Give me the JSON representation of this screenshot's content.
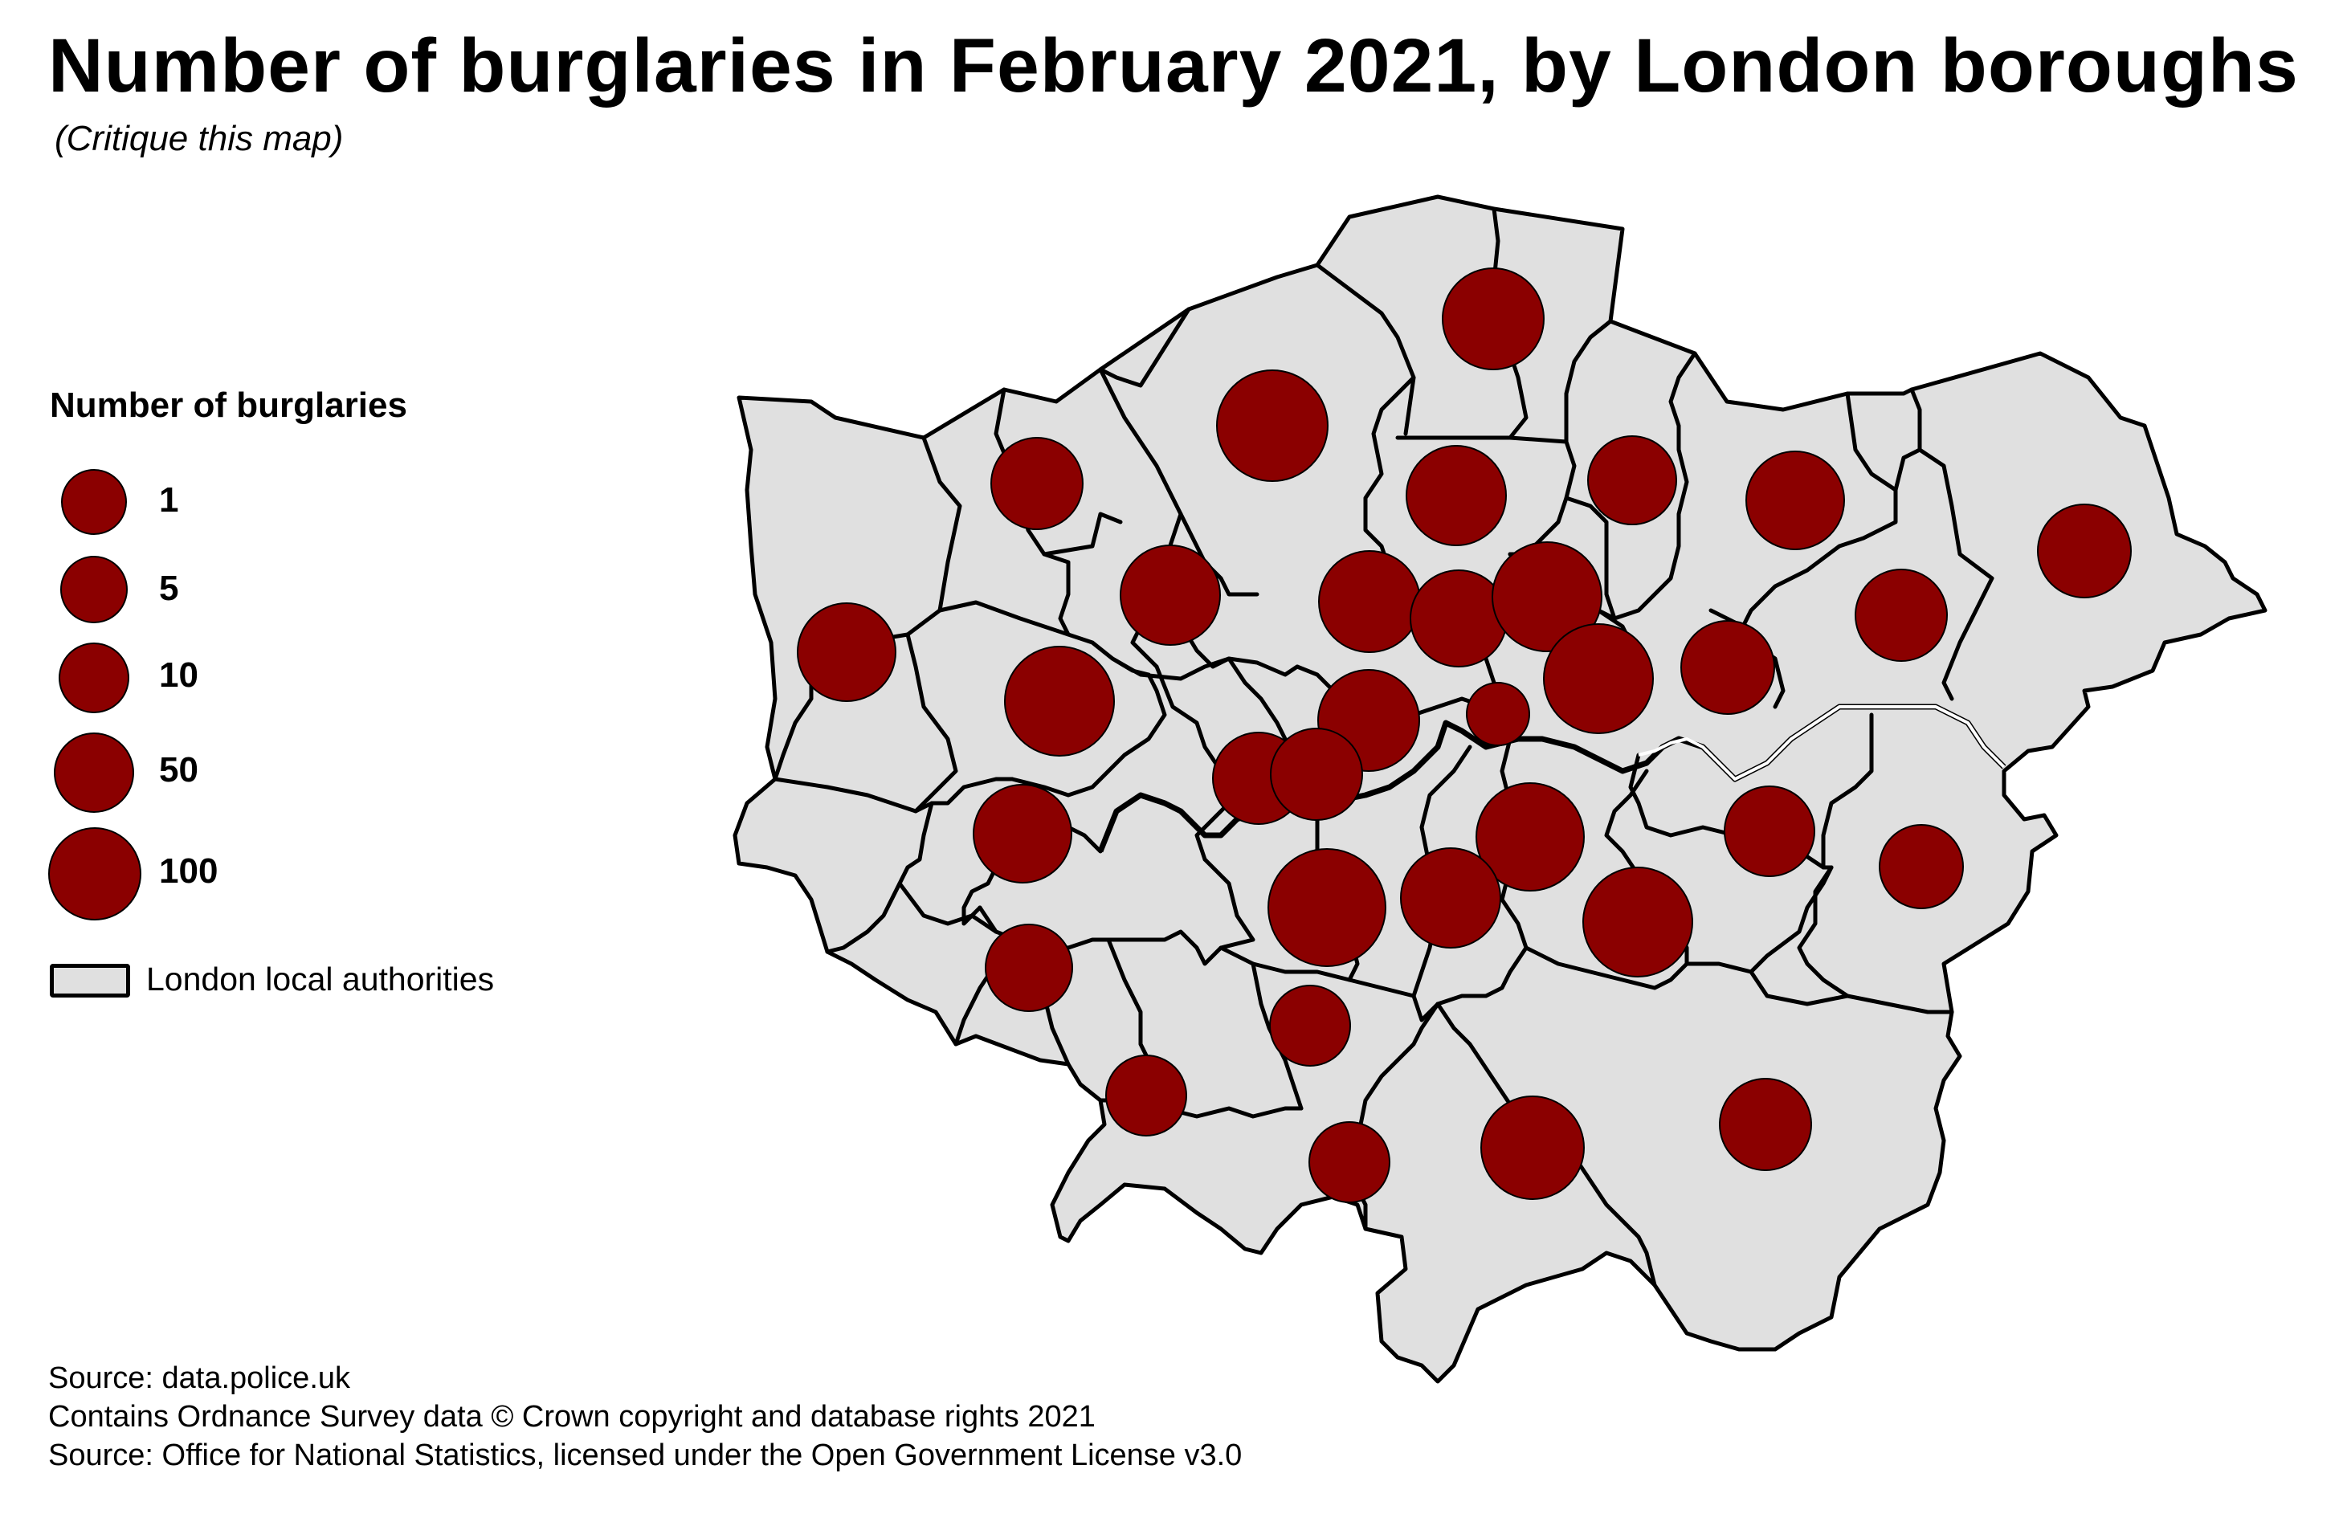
{
  "title": "Number of burglaries in February 2021, by London boroughs",
  "subtitle": "(Critique this map)",
  "colors": {
    "symbol_fill": "#8b0000",
    "area_fill": "#e0e0e0",
    "outline": "#000000",
    "background": "#ffffff"
  },
  "legend": {
    "title": "Number of burglaries",
    "symbols": [
      {
        "label": "1",
        "value": 1
      },
      {
        "label": "5",
        "value": 5
      },
      {
        "label": "10",
        "value": 10
      },
      {
        "label": "50",
        "value": 50
      },
      {
        "label": "100",
        "value": 100
      }
    ],
    "area_label": "London local authorities"
  },
  "sources": [
    "Source: data.police.uk",
    "Contains Ordnance Survey data © Crown copyright and database rights 2021",
    "Source: Office for National Statistics, licensed under the Open Government License v3.0"
  ]
}
